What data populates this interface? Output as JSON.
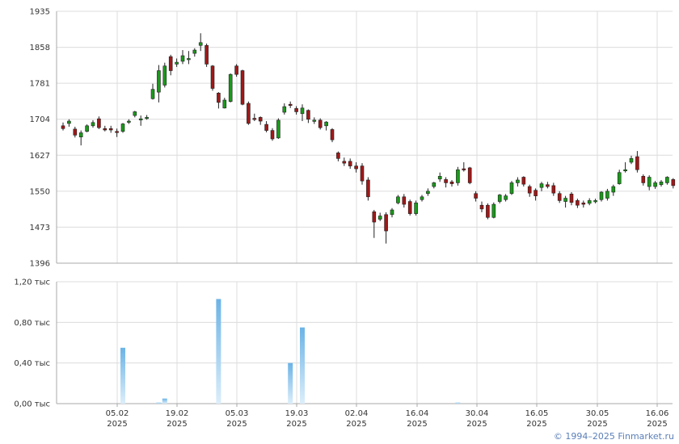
{
  "copyright": "© 1994–2025 Finmarket.ru",
  "chart_data": [
    {
      "type": "candlestick",
      "ylim": [
        1396,
        1935
      ],
      "yticks": [
        "1935",
        "1858",
        "1781",
        "1704",
        "1627",
        "1550",
        "1473",
        "1396"
      ],
      "grid": true,
      "colors": {
        "up": "#1a9a1a",
        "down": "#a01818",
        "wick": "#222222"
      },
      "candles": [
        [
          1690,
          1684,
          1697,
          1680
        ],
        [
          1695,
          1700,
          1704,
          1688
        ],
        [
          1683,
          1670,
          1688,
          1665
        ],
        [
          1666,
          1675,
          1680,
          1648
        ],
        [
          1678,
          1690,
          1693,
          1676
        ],
        [
          1690,
          1697,
          1702,
          1686
        ],
        [
          1705,
          1686,
          1710,
          1683
        ],
        [
          1684,
          1681,
          1690,
          1678
        ],
        [
          1684,
          1681,
          1690,
          1675
        ],
        [
          1678,
          1676,
          1684,
          1666
        ],
        [
          1678,
          1694,
          1696,
          1675
        ],
        [
          1698,
          1700,
          1704,
          1694
        ],
        [
          1712,
          1720,
          1722,
          1708
        ],
        [
          1705,
          1705,
          1712,
          1690
        ],
        [
          1706,
          1708,
          1713,
          1703
        ],
        [
          1748,
          1768,
          1780,
          1746
        ],
        [
          1762,
          1808,
          1820,
          1740
        ],
        [
          1777,
          1818,
          1825,
          1772
        ],
        [
          1838,
          1808,
          1842,
          1798
        ],
        [
          1822,
          1826,
          1834,
          1816
        ],
        [
          1828,
          1840,
          1852,
          1822
        ],
        [
          1834,
          1834,
          1850,
          1822
        ],
        [
          1845,
          1852,
          1856,
          1838
        ],
        [
          1862,
          1868,
          1888,
          1850
        ],
        [
          1862,
          1822,
          1866,
          1816
        ],
        [
          1818,
          1770,
          1820,
          1765
        ],
        [
          1760,
          1740,
          1762,
          1727
        ],
        [
          1728,
          1745,
          1750,
          1727
        ],
        [
          1742,
          1800,
          1802,
          1740
        ],
        [
          1818,
          1800,
          1822,
          1795
        ],
        [
          1808,
          1736,
          1810,
          1734
        ],
        [
          1738,
          1695,
          1742,
          1692
        ],
        [
          1706,
          1704,
          1716,
          1700
        ],
        [
          1708,
          1700,
          1710,
          1692
        ],
        [
          1693,
          1680,
          1700,
          1676
        ],
        [
          1680,
          1662,
          1685,
          1658
        ],
        [
          1664,
          1702,
          1706,
          1662
        ],
        [
          1719,
          1731,
          1738,
          1714
        ],
        [
          1736,
          1734,
          1742,
          1728
        ],
        [
          1727,
          1720,
          1732,
          1714
        ],
        [
          1716,
          1728,
          1736,
          1700
        ],
        [
          1723,
          1704,
          1725,
          1696
        ],
        [
          1702,
          1702,
          1708,
          1694
        ],
        [
          1702,
          1686,
          1706,
          1682
        ],
        [
          1690,
          1698,
          1700,
          1680
        ],
        [
          1682,
          1660,
          1685,
          1655
        ],
        [
          1632,
          1620,
          1635,
          1614
        ],
        [
          1614,
          1610,
          1622,
          1604
        ],
        [
          1614,
          1604,
          1620,
          1598
        ],
        [
          1604,
          1598,
          1612,
          1590
        ],
        [
          1604,
          1572,
          1610,
          1564
        ],
        [
          1574,
          1538,
          1580,
          1530
        ],
        [
          1506,
          1484,
          1510,
          1450
        ],
        [
          1490,
          1497,
          1504,
          1486
        ],
        [
          1500,
          1465,
          1505,
          1438
        ],
        [
          1500,
          1510,
          1514,
          1494
        ],
        [
          1525,
          1538,
          1542,
          1522
        ],
        [
          1538,
          1522,
          1544,
          1515
        ],
        [
          1528,
          1502,
          1532,
          1498
        ],
        [
          1502,
          1525,
          1530,
          1498
        ],
        [
          1532,
          1538,
          1542,
          1528
        ],
        [
          1545,
          1550,
          1556,
          1540
        ],
        [
          1560,
          1568,
          1570,
          1556
        ],
        [
          1576,
          1582,
          1590,
          1570
        ],
        [
          1575,
          1568,
          1580,
          1558
        ],
        [
          1570,
          1566,
          1574,
          1560
        ],
        [
          1568,
          1596,
          1602,
          1562
        ],
        [
          1598,
          1596,
          1612,
          1592
        ],
        [
          1600,
          1568,
          1602,
          1565
        ],
        [
          1545,
          1535,
          1550,
          1528
        ],
        [
          1520,
          1512,
          1528,
          1505
        ],
        [
          1520,
          1494,
          1524,
          1490
        ],
        [
          1494,
          1522,
          1526,
          1492
        ],
        [
          1528,
          1542,
          1544,
          1524
        ],
        [
          1532,
          1540,
          1544,
          1528
        ],
        [
          1545,
          1568,
          1572,
          1542
        ],
        [
          1568,
          1574,
          1580,
          1560
        ],
        [
          1580,
          1565,
          1582,
          1560
        ],
        [
          1560,
          1546,
          1564,
          1538
        ],
        [
          1552,
          1540,
          1556,
          1530
        ],
        [
          1558,
          1566,
          1570,
          1550
        ],
        [
          1564,
          1560,
          1570,
          1556
        ],
        [
          1562,
          1546,
          1568,
          1540
        ],
        [
          1545,
          1530,
          1550,
          1525
        ],
        [
          1528,
          1535,
          1540,
          1515
        ],
        [
          1544,
          1526,
          1548,
          1520
        ],
        [
          1530,
          1520,
          1534,
          1514
        ],
        [
          1525,
          1522,
          1530,
          1515
        ],
        [
          1524,
          1530,
          1535,
          1520
        ],
        [
          1528,
          1530,
          1534,
          1524
        ],
        [
          1532,
          1548,
          1550,
          1528
        ],
        [
          1535,
          1550,
          1555,
          1530
        ],
        [
          1548,
          1560,
          1564,
          1540
        ],
        [
          1566,
          1590,
          1596,
          1564
        ],
        [
          1596,
          1596,
          1612,
          1590
        ],
        [
          1612,
          1620,
          1626,
          1608
        ],
        [
          1624,
          1596,
          1636,
          1590
        ],
        [
          1582,
          1568,
          1586,
          1562
        ],
        [
          1560,
          1580,
          1584,
          1552
        ],
        [
          1560,
          1568,
          1572,
          1555
        ],
        [
          1564,
          1570,
          1574,
          1560
        ],
        [
          1568,
          1580,
          1582,
          1564
        ],
        [
          1575,
          1562,
          1578,
          1556
        ]
      ]
    },
    {
      "type": "bar",
      "ylim": [
        0,
        1.2
      ],
      "yticks": [
        "1,20 тыс",
        "0,80 тыс",
        "0,40 тыс",
        "0,00 тыс"
      ],
      "ytick_values": [
        1.2,
        0.8,
        0.4,
        0
      ],
      "x": [
        "05.02\n2025",
        "19.02\n2025",
        "05.03\n2025",
        "19.03\n2025",
        "02.04\n2025",
        "16.04\n2025",
        "30.04\n2025",
        "16.05\n2025",
        "30.05\n2025",
        "16.06\n2025"
      ],
      "xtick_labels": [
        {
          "day": "05.02",
          "year": "2025"
        },
        {
          "day": "19.02",
          "year": "2025"
        },
        {
          "day": "05.03",
          "year": "2025"
        },
        {
          "day": "19.03",
          "year": "2025"
        },
        {
          "day": "02.04",
          "year": "2025"
        },
        {
          "day": "16.04",
          "year": "2025"
        },
        {
          "day": "30.04",
          "year": "2025"
        },
        {
          "day": "16.05",
          "year": "2025"
        },
        {
          "day": "30.05",
          "year": "2025"
        },
        {
          "day": "16.06",
          "year": "2025"
        }
      ],
      "bar_color": "#7fbde8",
      "bars": [
        {
          "index": 10,
          "value": 0.55
        },
        {
          "index": 16,
          "value": 0.01
        },
        {
          "index": 17,
          "value": 0.05
        },
        {
          "index": 26,
          "value": 1.03
        },
        {
          "index": 38,
          "value": 0.4
        },
        {
          "index": 40,
          "value": 0.75
        },
        {
          "index": 66,
          "value": 0.01
        }
      ]
    }
  ]
}
